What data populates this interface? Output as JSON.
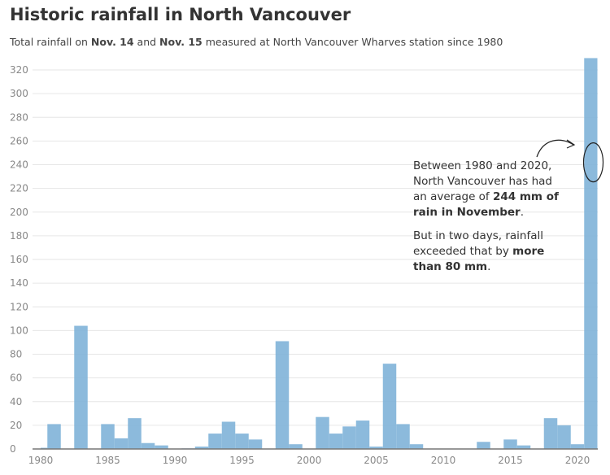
{
  "title": "Historic rainfall in North Vancouver",
  "subtitle": {
    "pre": "Total rainfall on ",
    "d1": "Nov. 14",
    "mid": " and ",
    "d2": "Nov. 15",
    "post": " measured at North Vancouver Wharves station since 1980"
  },
  "annotation": {
    "p1_pre": "Between 1980 and 2020, North Vancouver has had an average of ",
    "p1_bold": "244 mm of rain in November",
    "p1_post": ".",
    "p2_pre": "But in two days, rainfall exceeded that by ",
    "p2_bold": "more than 80 mm",
    "p2_post": "."
  },
  "chart_data": {
    "type": "bar",
    "title": "Historic rainfall in North Vancouver",
    "xlabel": "",
    "ylabel": "",
    "ylim": [
      0,
      330
    ],
    "yticks": [
      0,
      20,
      40,
      60,
      80,
      100,
      120,
      140,
      160,
      180,
      200,
      220,
      240,
      260,
      280,
      300,
      320
    ],
    "xticks": [
      1980,
      1985,
      1990,
      1995,
      2000,
      2005,
      2010,
      2015,
      2020
    ],
    "grid": true,
    "color": "#7fb2d8",
    "x": [
      1980,
      1981,
      1982,
      1983,
      1984,
      1985,
      1986,
      1987,
      1988,
      1989,
      1990,
      1991,
      1992,
      1993,
      1994,
      1995,
      1996,
      1997,
      1998,
      1999,
      2000,
      2001,
      2002,
      2003,
      2004,
      2005,
      2006,
      2007,
      2008,
      2009,
      2010,
      2011,
      2012,
      2013,
      2014,
      2015,
      2016,
      2017,
      2018,
      2019,
      2020,
      2021
    ],
    "values": [
      1,
      21,
      0,
      104,
      0,
      21,
      9,
      26,
      5,
      3,
      0,
      0.5,
      2,
      13,
      23,
      13,
      8,
      0,
      91,
      4,
      0,
      27,
      13,
      19,
      24,
      2,
      72,
      21,
      4,
      0,
      0,
      0,
      0,
      6,
      0,
      8,
      3,
      0,
      26,
      20,
      4,
      330
    ]
  }
}
